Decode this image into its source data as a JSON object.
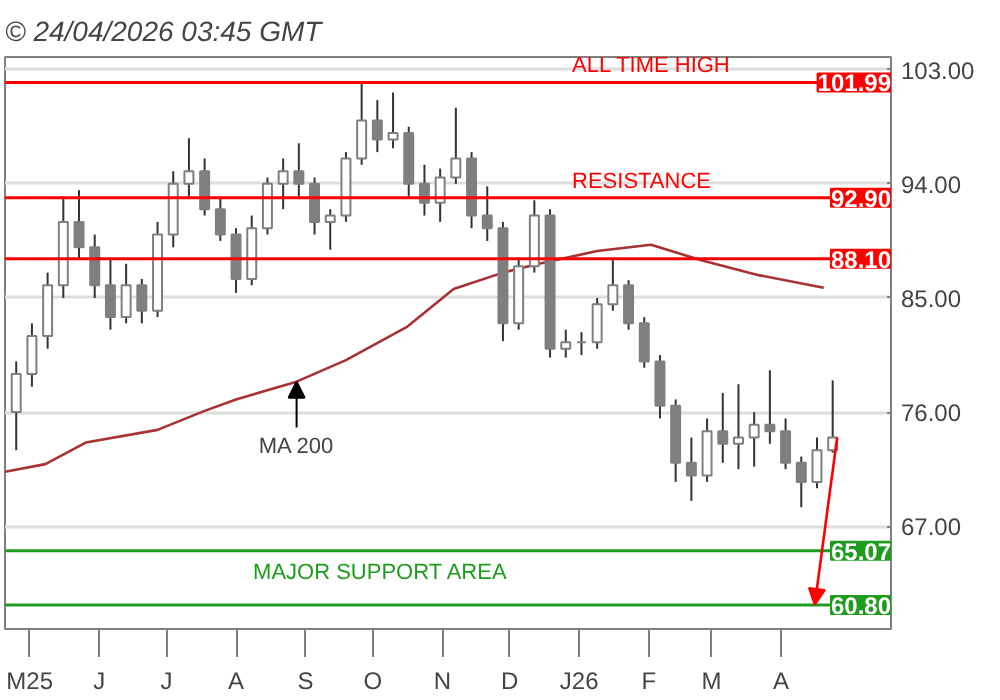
{
  "chart_data": {
    "type": "candlestick",
    "title": "© 24/04/2026 03:45 GMT",
    "color": "#7f7f7f",
    "x": [
      "2025-04-25",
      "2025-05-02",
      "2025-05-09",
      "2025-05-16",
      "2025-05-23",
      "2025-05-30",
      "2025-06-06",
      "2025-06-13",
      "2025-06-20",
      "2025-06-27",
      "2025-07-04",
      "2025-07-11",
      "2025-07-18",
      "2025-07-25",
      "2025-08-01",
      "2025-08-08",
      "2025-08-15",
      "2025-08-22",
      "2025-08-29",
      "2025-09-05",
      "2025-09-12",
      "2025-09-19",
      "2025-09-26",
      "2025-10-03",
      "2025-10-10",
      "2025-10-17",
      "2025-10-24",
      "2025-10-31",
      "2025-11-07",
      "2025-11-14",
      "2025-11-21",
      "2025-11-28",
      "2025-12-05",
      "2025-12-12",
      "2025-12-19",
      "2025-12-26",
      "2026-01-02",
      "2026-01-09",
      "2026-01-16",
      "2026-01-23",
      "2026-01-30",
      "2026-02-06",
      "2026-02-13",
      "2026-02-20",
      "2026-02-27",
      "2026-03-06",
      "2026-03-13",
      "2026-03-20",
      "2026-03-27",
      "2026-04-03",
      "2026-04-10",
      "2026-04-17",
      "2026-04-24"
    ],
    "ohlc": [
      [
        76,
        80,
        73,
        79
      ],
      [
        79,
        83,
        78,
        82
      ],
      [
        82,
        87,
        81,
        86
      ],
      [
        86,
        93,
        85,
        91
      ],
      [
        91,
        93.5,
        88,
        89
      ],
      [
        89,
        90,
        85,
        86
      ],
      [
        86,
        88,
        82.5,
        83.5
      ],
      [
        83.5,
        87.7,
        83,
        86
      ],
      [
        86,
        86.5,
        83,
        84
      ],
      [
        84,
        91,
        83.5,
        90
      ],
      [
        90,
        95,
        89,
        94
      ],
      [
        94,
        97.6,
        93,
        95
      ],
      [
        95,
        96,
        91.5,
        92
      ],
      [
        92,
        93,
        89.5,
        90
      ],
      [
        90,
        90.5,
        85.4,
        86.5
      ],
      [
        86.5,
        91.5,
        86,
        90.5
      ],
      [
        90.5,
        94.5,
        90,
        94
      ],
      [
        94,
        96,
        92,
        95
      ],
      [
        95,
        97.2,
        93,
        94
      ],
      [
        94,
        94.5,
        90,
        91
      ],
      [
        91,
        92,
        88.8,
        91.5
      ],
      [
        91.5,
        96.5,
        91,
        96
      ],
      [
        96,
        101.99,
        95.5,
        99
      ],
      [
        99,
        100.6,
        96.5,
        97.5
      ],
      [
        97.5,
        101.2,
        96.8,
        98
      ],
      [
        98,
        98.5,
        93,
        94
      ],
      [
        94,
        95.5,
        91.5,
        92.5
      ],
      [
        92.5,
        95.2,
        91,
        94.5
      ],
      [
        94.5,
        100,
        94,
        96
      ],
      [
        96,
        96.5,
        90.5,
        91.5
      ],
      [
        91.5,
        93.8,
        89.5,
        90.5
      ],
      [
        90.5,
        91,
        81.6,
        83
      ],
      [
        83,
        88,
        82.5,
        87.5
      ],
      [
        87.5,
        92.7,
        87,
        91.5
      ],
      [
        91.5,
        92,
        80.3,
        81
      ],
      [
        81,
        82.5,
        80.3,
        81.5
      ],
      [
        81.5,
        82.3,
        80.5,
        81.5
      ],
      [
        81.5,
        85,
        81,
        84.5
      ],
      [
        84.5,
        88,
        84,
        86
      ],
      [
        86,
        86.4,
        82.5,
        83
      ],
      [
        83,
        83.5,
        79.5,
        80
      ],
      [
        80,
        80.5,
        75.5,
        76.5
      ],
      [
        76.5,
        77,
        70.5,
        72
      ],
      [
        72,
        74,
        69,
        71
      ],
      [
        71,
        75.5,
        70.5,
        74.5
      ],
      [
        74.5,
        77.5,
        72,
        73.5
      ],
      [
        73.5,
        78.2,
        71.5,
        74
      ],
      [
        74,
        76,
        71.7,
        75
      ],
      [
        75,
        79.3,
        73.5,
        74.5
      ],
      [
        74.5,
        75.5,
        71.5,
        72
      ],
      [
        72,
        72.5,
        68.5,
        70.5
      ],
      [
        70.5,
        74,
        70,
        73
      ],
      [
        73,
        78.5,
        72.8,
        74
      ]
    ],
    "series": [
      {
        "type": "line",
        "color": "#a83232",
        "x": [
          "2025-04-20",
          "2025-05-08",
          "2025-05-26",
          "2025-06-27",
          "2025-07-18",
          "2025-08-01",
          "2025-08-28",
          "2025-09-19",
          "2025-10-16",
          "2025-11-06",
          "2025-11-28",
          "2025-12-14",
          "2026-01-09",
          "2026-02-02",
          "2026-02-24",
          "2026-03-22",
          "2026-04-20"
        ],
        "values": [
          71.3,
          71.9,
          73.6,
          74.6,
          76.1,
          77,
          78.4,
          80.1,
          82.7,
          85.7,
          87,
          87.7,
          88.7,
          89.2,
          88,
          86.8,
          85.8
        ]
      }
    ],
    "annotations": [
      {
        "text": "MA 200",
        "x": "2025-08-28",
        "y": 78.4
      },
      {
        "text": "101.99",
        "x": "2026-05-20",
        "y": 101.99
      },
      {
        "text": "92.90",
        "x": "2026-05-20",
        "y": 92.9
      },
      {
        "text": "88.10",
        "x": "2026-05-20",
        "y": 88.1
      },
      {
        "text": "65.07",
        "x": "2026-05-20",
        "y": 65.07
      },
      {
        "text": "60.80",
        "x": "2026-05-20",
        "y": 60.8
      }
    ],
    "ref_lines": [
      {
        "axis": "y",
        "value": 101.99,
        "label": "ALL TIME HIGH",
        "color": "#ff0000"
      },
      {
        "axis": "y",
        "value": 92.9,
        "label": "RESISTANCE",
        "color": "#ff0000"
      },
      {
        "axis": "y",
        "value": 88.1,
        "label": null,
        "color": "#ff0000"
      },
      {
        "axis": "y",
        "value": 65.07,
        "label": "MAJOR SUPPORT AREA",
        "color": "#1e9c1e"
      },
      {
        "axis": "y",
        "value": 60.8,
        "label": null,
        "color": "#1e9c1e"
      }
    ],
    "xlim": [
      "2025-04-20",
      "2026-05-20"
    ],
    "xticks": [
      {
        "value": "2025-05-01",
        "label": "M25"
      },
      {
        "value": "2025-06-01",
        "label": "J"
      },
      {
        "value": "2025-07-01",
        "label": "J"
      },
      {
        "value": "2025-08-01",
        "label": "A"
      },
      {
        "value": "2025-09-01",
        "label": "S"
      },
      {
        "value": "2025-10-01",
        "label": "O"
      },
      {
        "value": "2025-11-01",
        "label": "N"
      },
      {
        "value": "2025-12-01",
        "label": "D"
      },
      {
        "value": "2026-01-01",
        "label": "J26"
      },
      {
        "value": "2026-02-01",
        "label": "F"
      },
      {
        "value": "2026-03-01",
        "label": "M"
      },
      {
        "value": "2026-04-01",
        "label": "A"
      }
    ],
    "ylim": [
      58.9,
      104
    ],
    "yticks": [
      {
        "value": 103,
        "label": "103.00"
      },
      {
        "value": 94,
        "label": "94.00"
      },
      {
        "value": 85,
        "label": "85.00"
      },
      {
        "value": 76,
        "label": "76.00"
      },
      {
        "value": 67,
        "label": "67.00"
      }
    ],
    "grid": "y"
  }
}
